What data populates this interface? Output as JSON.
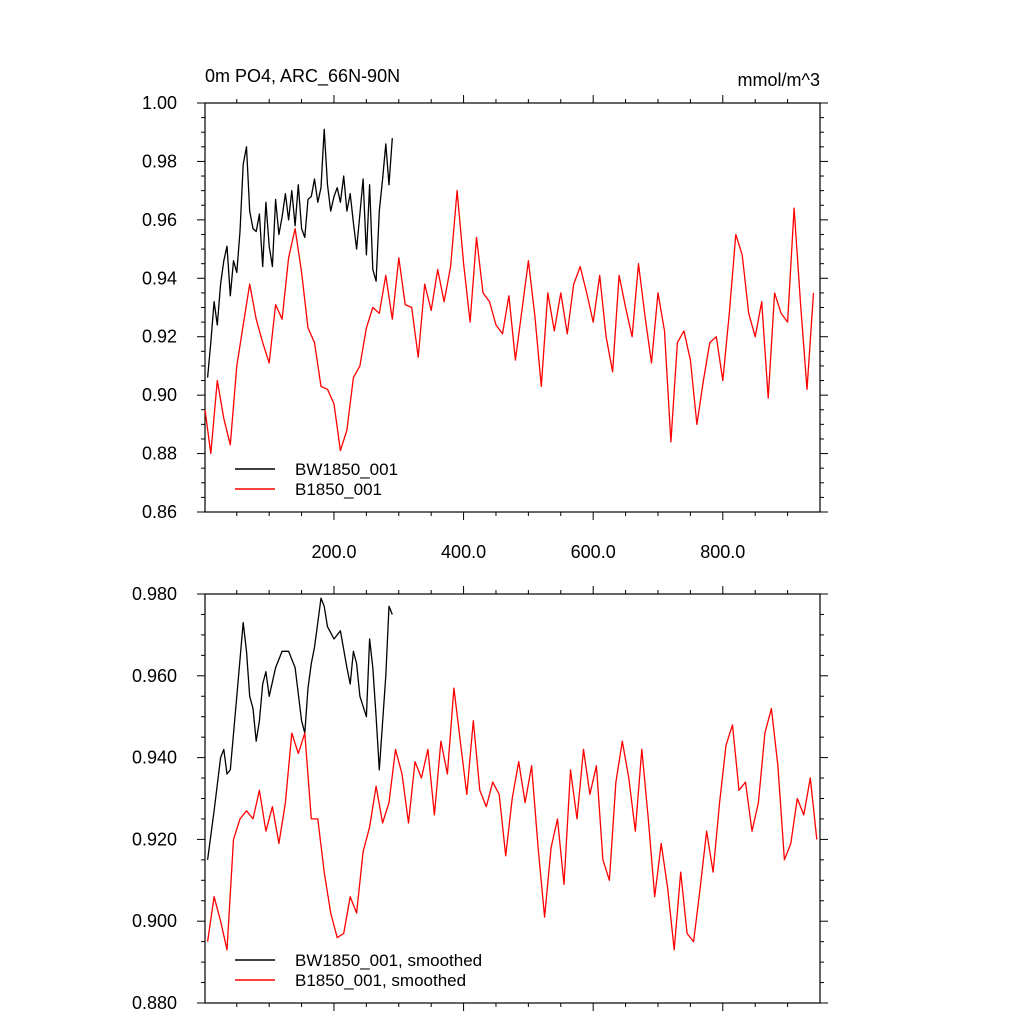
{
  "chart_data": [
    {
      "type": "line",
      "title": "0m PO4, ARC_66N-90N",
      "units_label": "mmol/m^3",
      "xlim": [
        1,
        950
      ],
      "ylim": [
        0.86,
        1.0
      ],
      "x_ticks": [
        200,
        400,
        600,
        800
      ],
      "x_tick_labels": [
        "200.0",
        "400.0",
        "600.0",
        "800.0"
      ],
      "y_ticks": [
        0.86,
        0.88,
        0.9,
        0.92,
        0.94,
        0.96,
        0.98,
        1.0
      ],
      "y_tick_labels": [
        "0.86",
        "0.88",
        "0.90",
        "0.92",
        "0.94",
        "0.96",
        "0.98",
        "1.00"
      ],
      "legend_position": "bottom-left",
      "series": [
        {
          "name": "BW1850_001",
          "color": "#000000",
          "x": [
            5,
            10,
            15,
            20,
            25,
            30,
            35,
            40,
            45,
            50,
            55,
            60,
            65,
            70,
            75,
            80,
            85,
            90,
            95,
            100,
            105,
            110,
            115,
            120,
            125,
            130,
            135,
            140,
            145,
            150,
            155,
            160,
            165,
            170,
            175,
            180,
            185,
            190,
            195,
            200,
            205,
            210,
            215,
            220,
            225,
            230,
            235,
            240,
            245,
            250,
            255,
            260,
            265,
            270,
            275,
            280,
            285,
            290
          ],
          "values": [
            0.906,
            0.918,
            0.932,
            0.924,
            0.938,
            0.946,
            0.951,
            0.934,
            0.946,
            0.942,
            0.956,
            0.979,
            0.985,
            0.963,
            0.957,
            0.956,
            0.962,
            0.944,
            0.966,
            0.951,
            0.944,
            0.967,
            0.955,
            0.961,
            0.969,
            0.96,
            0.97,
            0.958,
            0.972,
            0.957,
            0.954,
            0.967,
            0.968,
            0.974,
            0.966,
            0.971,
            0.991,
            0.972,
            0.963,
            0.968,
            0.971,
            0.966,
            0.975,
            0.963,
            0.969,
            0.959,
            0.95,
            0.962,
            0.974,
            0.948,
            0.972,
            0.943,
            0.939,
            0.963,
            0.974,
            0.986,
            0.972,
            0.988
          ]
        },
        {
          "name": "B1850_001",
          "color": "#ff0000",
          "x": [
            1,
            10,
            20,
            30,
            40,
            50,
            60,
            70,
            80,
            90,
            100,
            110,
            120,
            130,
            140,
            150,
            160,
            170,
            180,
            190,
            200,
            210,
            220,
            230,
            240,
            250,
            260,
            270,
            280,
            290,
            300,
            310,
            320,
            330,
            340,
            350,
            360,
            370,
            380,
            390,
            400,
            410,
            420,
            430,
            440,
            450,
            460,
            470,
            480,
            490,
            500,
            510,
            520,
            530,
            540,
            550,
            560,
            570,
            580,
            590,
            600,
            610,
            620,
            630,
            640,
            650,
            660,
            670,
            680,
            690,
            700,
            710,
            720,
            730,
            740,
            750,
            760,
            770,
            780,
            790,
            800,
            810,
            820,
            830,
            840,
            850,
            860,
            870,
            880,
            890,
            900,
            910,
            920,
            930,
            940
          ],
          "values": [
            0.895,
            0.88,
            0.905,
            0.892,
            0.883,
            0.91,
            0.924,
            0.938,
            0.926,
            0.918,
            0.911,
            0.931,
            0.926,
            0.947,
            0.957,
            0.942,
            0.923,
            0.918,
            0.903,
            0.902,
            0.897,
            0.881,
            0.888,
            0.906,
            0.91,
            0.923,
            0.93,
            0.928,
            0.941,
            0.926,
            0.947,
            0.931,
            0.93,
            0.913,
            0.938,
            0.929,
            0.943,
            0.932,
            0.944,
            0.97,
            0.945,
            0.925,
            0.954,
            0.935,
            0.932,
            0.924,
            0.921,
            0.934,
            0.912,
            0.929,
            0.946,
            0.927,
            0.903,
            0.935,
            0.922,
            0.935,
            0.921,
            0.938,
            0.944,
            0.935,
            0.925,
            0.941,
            0.92,
            0.908,
            0.941,
            0.93,
            0.92,
            0.945,
            0.927,
            0.911,
            0.935,
            0.922,
            0.884,
            0.918,
            0.922,
            0.912,
            0.89,
            0.905,
            0.918,
            0.92,
            0.905,
            0.928,
            0.955,
            0.948,
            0.928,
            0.92,
            0.932,
            0.899,
            0.935,
            0.928,
            0.925,
            0.964,
            0.931,
            0.902,
            0.935
          ]
        }
      ]
    },
    {
      "type": "line",
      "title": "",
      "xlim": [
        1,
        950
      ],
      "ylim": [
        0.88,
        0.98
      ],
      "y_ticks": [
        0.88,
        0.9,
        0.92,
        0.94,
        0.96,
        0.98
      ],
      "y_tick_labels": [
        "0.880",
        "0.900",
        "0.920",
        "0.940",
        "0.960",
        "0.980"
      ],
      "legend_position": "bottom-left",
      "series": [
        {
          "name": "BW1850_001, smoothed",
          "color": "#000000",
          "x": [
            5,
            15,
            25,
            30,
            35,
            40,
            50,
            55,
            60,
            65,
            70,
            75,
            80,
            85,
            90,
            95,
            100,
            110,
            120,
            130,
            140,
            150,
            155,
            160,
            165,
            170,
            175,
            180,
            185,
            190,
            200,
            210,
            220,
            225,
            230,
            235,
            240,
            250,
            255,
            260,
            265,
            270,
            280,
            285,
            290
          ],
          "values": [
            0.915,
            0.927,
            0.94,
            0.942,
            0.936,
            0.937,
            0.955,
            0.964,
            0.973,
            0.966,
            0.955,
            0.952,
            0.944,
            0.949,
            0.958,
            0.961,
            0.955,
            0.962,
            0.966,
            0.966,
            0.962,
            0.949,
            0.946,
            0.957,
            0.963,
            0.967,
            0.973,
            0.979,
            0.977,
            0.972,
            0.969,
            0.971,
            0.962,
            0.958,
            0.966,
            0.963,
            0.955,
            0.95,
            0.969,
            0.962,
            0.95,
            0.937,
            0.96,
            0.977,
            0.975
          ]
        },
        {
          "name": "B1850_001, smoothed",
          "color": "#ff0000",
          "x": [
            5,
            15,
            25,
            35,
            45,
            55,
            65,
            75,
            85,
            95,
            105,
            115,
            125,
            135,
            145,
            155,
            165,
            175,
            185,
            195,
            205,
            215,
            225,
            235,
            245,
            255,
            265,
            275,
            285,
            295,
            305,
            315,
            325,
            335,
            345,
            355,
            365,
            375,
            385,
            395,
            405,
            415,
            425,
            435,
            445,
            455,
            465,
            475,
            485,
            495,
            505,
            515,
            525,
            535,
            545,
            555,
            565,
            575,
            585,
            595,
            605,
            615,
            625,
            635,
            645,
            655,
            665,
            675,
            685,
            695,
            705,
            715,
            725,
            735,
            745,
            755,
            765,
            775,
            785,
            795,
            805,
            815,
            825,
            835,
            845,
            855,
            865,
            875,
            885,
            895,
            905,
            915,
            925,
            935,
            945
          ],
          "values": [
            0.895,
            0.906,
            0.9,
            0.893,
            0.92,
            0.925,
            0.927,
            0.925,
            0.932,
            0.922,
            0.928,
            0.919,
            0.929,
            0.946,
            0.941,
            0.946,
            0.925,
            0.925,
            0.912,
            0.902,
            0.896,
            0.897,
            0.906,
            0.902,
            0.917,
            0.923,
            0.933,
            0.924,
            0.929,
            0.942,
            0.936,
            0.924,
            0.939,
            0.935,
            0.942,
            0.926,
            0.944,
            0.936,
            0.957,
            0.944,
            0.931,
            0.949,
            0.932,
            0.928,
            0.934,
            0.931,
            0.916,
            0.93,
            0.939,
            0.929,
            0.938,
            0.918,
            0.901,
            0.918,
            0.925,
            0.909,
            0.937,
            0.925,
            0.942,
            0.931,
            0.938,
            0.915,
            0.91,
            0.934,
            0.944,
            0.935,
            0.922,
            0.942,
            0.925,
            0.906,
            0.919,
            0.908,
            0.893,
            0.912,
            0.897,
            0.895,
            0.908,
            0.922,
            0.912,
            0.929,
            0.943,
            0.948,
            0.932,
            0.934,
            0.922,
            0.929,
            0.946,
            0.952,
            0.938,
            0.915,
            0.919,
            0.93,
            0.926,
            0.935,
            0.92
          ]
        }
      ]
    }
  ]
}
